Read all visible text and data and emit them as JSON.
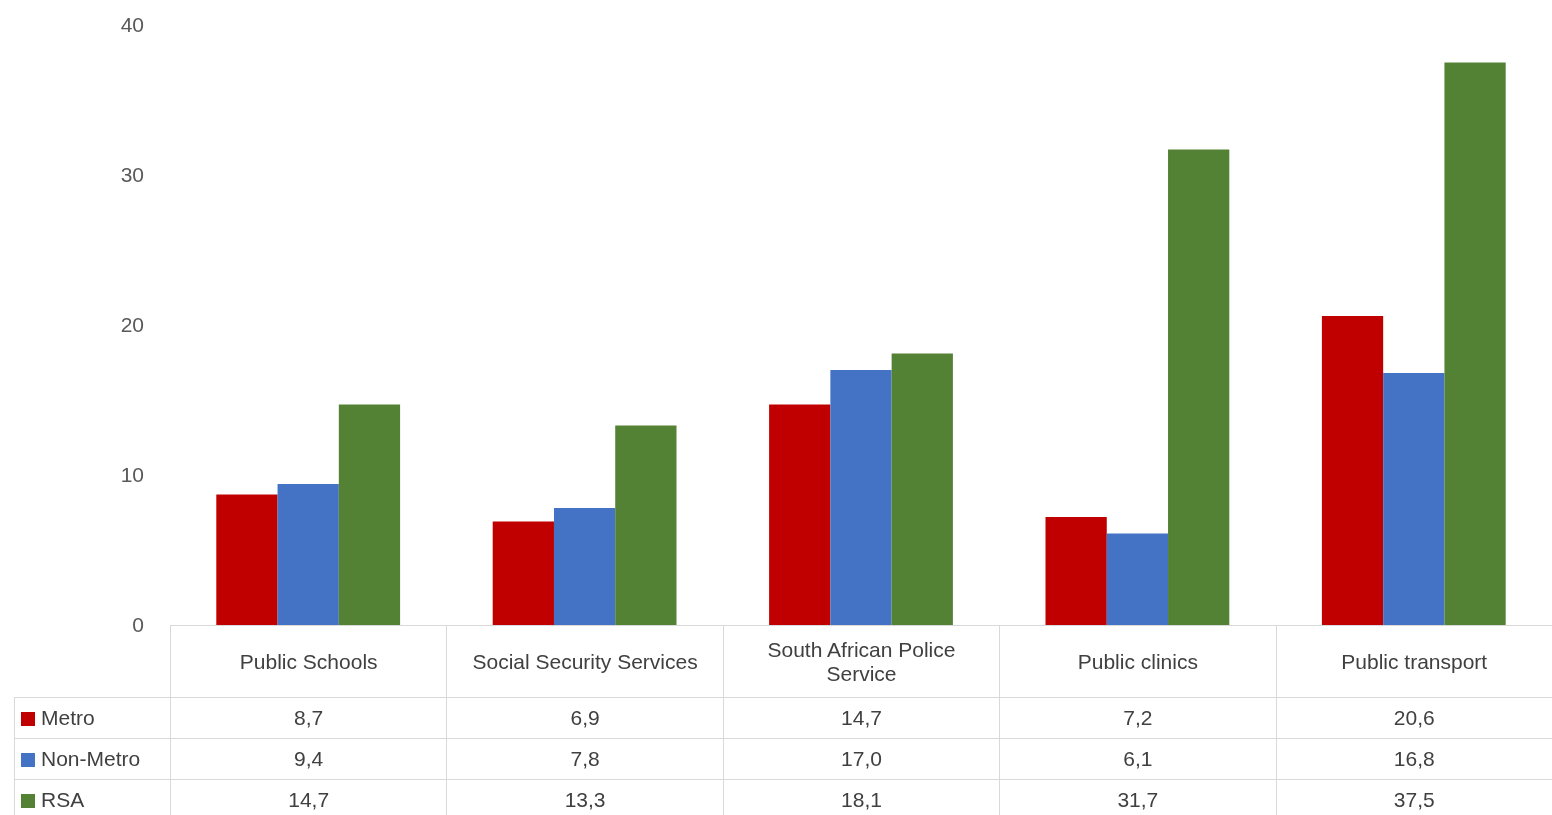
{
  "chart_data": {
    "type": "bar",
    "categories": [
      "Public Schools",
      "Social Security Services",
      "South African Police Service",
      "Public clinics",
      "Public transport"
    ],
    "series": [
      {
        "name": "Metro",
        "color": "#c00000",
        "values": [
          8.7,
          6.9,
          14.7,
          7.2,
          20.6
        ],
        "value_labels": [
          "8,7",
          "6,9",
          "14,7",
          "7,2",
          "20,6"
        ]
      },
      {
        "name": "Non-Metro",
        "color": "#4472c4",
        "values": [
          9.4,
          7.8,
          17.0,
          6.1,
          16.8
        ],
        "value_labels": [
          "9,4",
          "7,8",
          "17,0",
          "6,1",
          "16,8"
        ]
      },
      {
        "name": "RSA",
        "color": "#548235",
        "values": [
          14.7,
          13.3,
          18.1,
          31.7,
          37.5
        ],
        "value_labels": [
          "14,7",
          "13,3",
          "18,1",
          "31,7",
          "37,5"
        ]
      }
    ],
    "ylim": [
      0,
      40
    ],
    "yticks": [
      0,
      10,
      20,
      30,
      40
    ],
    "grid": false,
    "legend": "bottom"
  }
}
